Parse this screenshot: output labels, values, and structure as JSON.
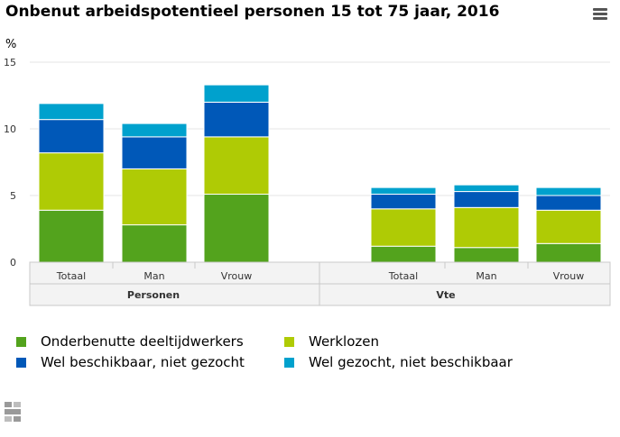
{
  "title": "Onbenut arbeidspotentieel personen 15 tot 75 jaar, 2016",
  "menu_icon": "hamburger-menu-icon",
  "chart_data": {
    "type": "bar",
    "stacked": true,
    "title": "Onbenut arbeidspotentieel personen 15 tot 75 jaar, 2016",
    "ylabel": "%",
    "ylim": [
      0,
      15
    ],
    "yticks": [
      0,
      5,
      10,
      15
    ],
    "groups": [
      {
        "label": "Personen",
        "categories": [
          "Totaal",
          "Man",
          "Vrouw"
        ]
      },
      {
        "label": "Vte",
        "categories": [
          "Totaal",
          "Man",
          "Vrouw"
        ]
      }
    ],
    "categories": [
      "Totaal",
      "Man",
      "Vrouw",
      "Totaal",
      "Man",
      "Vrouw"
    ],
    "series": [
      {
        "name": "Onderbenutte deeltijdwerkers",
        "color": "#53a31d",
        "values": [
          3.9,
          2.8,
          5.1,
          1.2,
          1.1,
          1.4
        ]
      },
      {
        "name": "Werklozen",
        "color": "#afcb05",
        "values": [
          4.3,
          4.2,
          4.3,
          2.8,
          3.0,
          2.5
        ]
      },
      {
        "name": "Wel beschikbaar, niet gezocht",
        "color": "#0058b8",
        "values": [
          2.5,
          2.4,
          2.6,
          1.1,
          1.2,
          1.1
        ]
      },
      {
        "name": "Wel gezocht, niet beschikbaar",
        "color": "#00a1cd",
        "values": [
          1.2,
          1.0,
          1.3,
          0.5,
          0.5,
          0.6
        ]
      }
    ]
  },
  "legend_layout": "bottom"
}
